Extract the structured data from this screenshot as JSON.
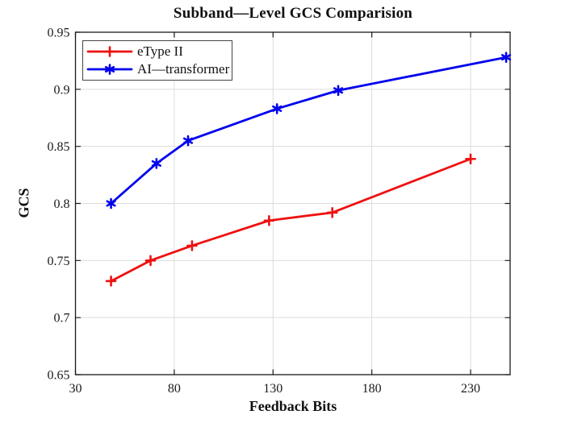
{
  "chart_data": {
    "type": "line",
    "title": "Subband—Level GCS Comparision",
    "xlabel": "Feedback Bits",
    "ylabel": "GCS",
    "xlim": [
      30,
      250
    ],
    "ylim": [
      0.65,
      0.95
    ],
    "x_ticks": [
      30,
      80,
      130,
      180,
      230
    ],
    "x_tick_labels": [
      "30",
      "80",
      "130",
      "180",
      "230"
    ],
    "y_ticks": [
      0.65,
      0.7,
      0.75,
      0.8,
      0.85,
      0.9,
      0.95
    ],
    "y_tick_labels": [
      "0.65",
      "0.7",
      "0.75",
      "0.8",
      "0.85",
      "0.9",
      "0.95"
    ],
    "grid": true,
    "legend_position": "top-left",
    "series": [
      {
        "name": "eType II",
        "color": "#ee1111",
        "marker": "plus",
        "x": [
          48,
          68,
          89,
          128,
          160,
          230
        ],
        "y": [
          0.732,
          0.75,
          0.763,
          0.785,
          0.792,
          0.839
        ]
      },
      {
        "name": "AI—transformer",
        "color": "#0000ee",
        "marker": "asterisk",
        "x": [
          48,
          71,
          87,
          132,
          163,
          248
        ],
        "y": [
          0.8,
          0.835,
          0.855,
          0.883,
          0.899,
          0.928
        ]
      }
    ],
    "colors": {
      "grid": "#dcdcdc",
      "axis": "#1a1a1a",
      "tick_text": "#1a1a1a",
      "series_red": "#ee1111",
      "series_blue": "#0000ee"
    }
  }
}
